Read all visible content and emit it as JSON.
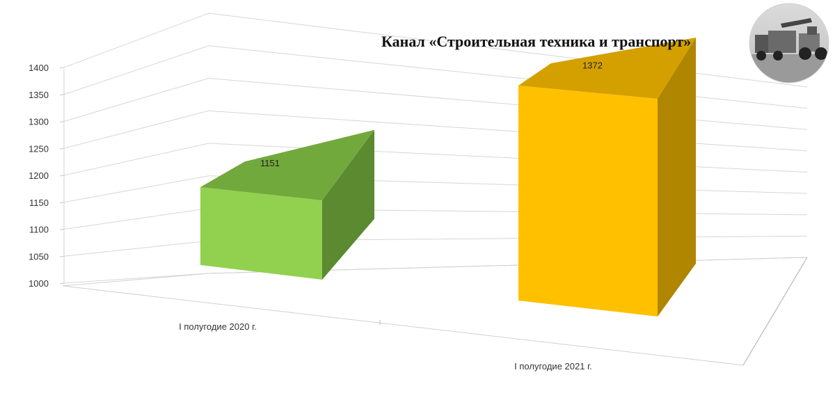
{
  "channel_title": "Канал «Строительная техника и транспорт»",
  "logo": {
    "icon": "construction-vehicles-photo"
  },
  "chart_data": {
    "type": "bar",
    "title": "",
    "xlabel": "",
    "ylabel": "",
    "categories": [
      "I полугодие 2020 г.",
      "I полугодие 2021 г."
    ],
    "values": [
      1151,
      1372
    ],
    "ylim": [
      1000,
      1400
    ],
    "yticks": [
      1000,
      1050,
      1100,
      1150,
      1200,
      1250,
      1300,
      1350,
      1400
    ],
    "grid": true,
    "legend": "none",
    "colors": [
      "#92d050",
      "#ffc000"
    ],
    "style": "3d-column"
  }
}
